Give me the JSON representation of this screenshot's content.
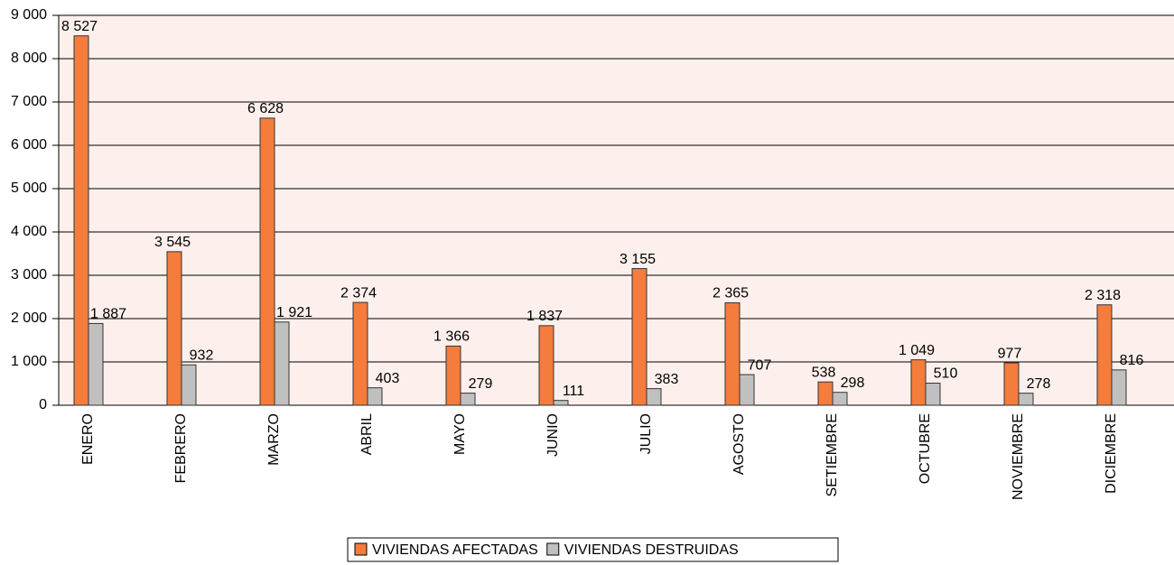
{
  "chart_data": {
    "type": "bar",
    "categories": [
      "ENERO",
      "FEBRERO",
      "MARZO",
      "ABRIL",
      "MAYO",
      "JUNIO",
      "JULIO",
      "AGOSTO",
      "SETIEMBRE",
      "OCTUBRE",
      "NOVIEMBRE",
      "DICIEMBRE"
    ],
    "series": [
      {
        "name": "VIVIENDAS AFECTADAS",
        "color": "#f47c3c",
        "values": [
          8527,
          3545,
          6628,
          2374,
          1366,
          1837,
          3155,
          2365,
          538,
          1049,
          977,
          2318
        ],
        "value_labels": [
          "8 527",
          "3 545",
          "6 628",
          "2 374",
          "1 366",
          "1 837",
          "3 155",
          "2 365",
          "538",
          "1 049",
          "977",
          "2 318"
        ]
      },
      {
        "name": "VIVIENDAS DESTRUIDAS",
        "color": "#c0c0c0",
        "values": [
          1887,
          932,
          1921,
          403,
          279,
          111,
          383,
          707,
          298,
          510,
          278,
          816
        ],
        "value_labels": [
          "1 887",
          "932",
          "1 921",
          "403",
          "279",
          "111",
          "383",
          "707",
          "298",
          "510",
          "278",
          "816"
        ]
      }
    ],
    "ylim": [
      0,
      9000
    ],
    "yticks": [
      0,
      {
        "value": 1000,
        "label": "1 000"
      },
      {
        "value": 2000,
        "label": "2 000"
      },
      {
        "value": 3000,
        "label": "3 000"
      },
      {
        "value": 4000,
        "label": "4 000"
      },
      {
        "value": 5000,
        "label": "5 000"
      },
      {
        "value": 6000,
        "label": "6 000"
      },
      {
        "value": 7000,
        "label": "7 000"
      },
      {
        "value": 8000,
        "label": "8 000"
      },
      {
        "value": 9000,
        "label": "9 000"
      }
    ],
    "grid": true,
    "legend": "bottom"
  }
}
